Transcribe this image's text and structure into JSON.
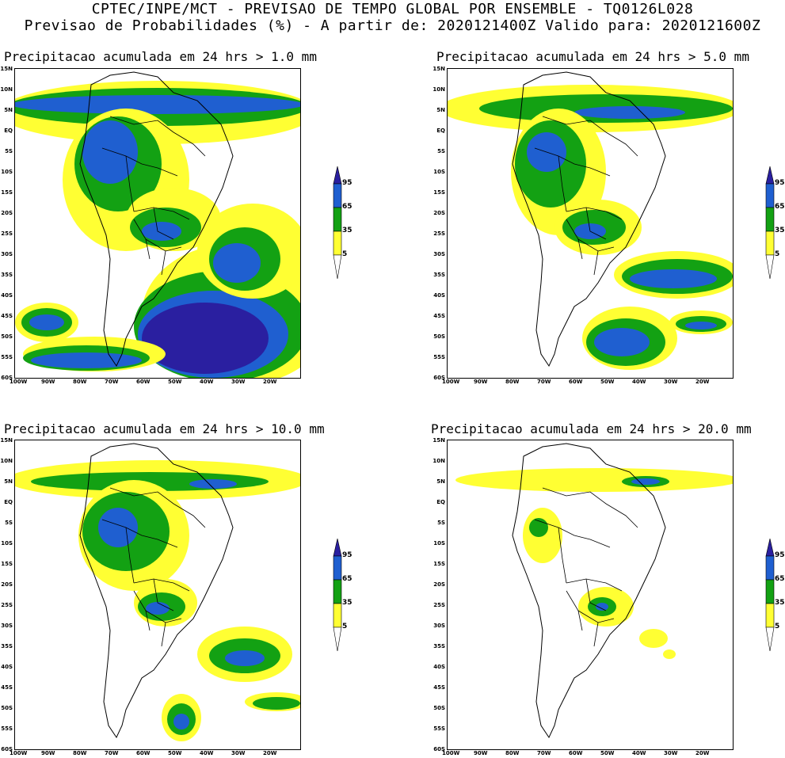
{
  "header": {
    "line1": "CPTEC/INPE/MCT - PREVISAO DE TEMPO GLOBAL POR ENSEMBLE - TQ0126L028",
    "line2": "Previsao de Probabilidades (%) -  A partir de: 2020121400Z  Valido para: 2020121600Z"
  },
  "panels": [
    {
      "title": "Precipitacao acumulada em 24 hrs > 1.0 mm"
    },
    {
      "title": "Precipitacao acumulada em 24 hrs > 5.0 mm"
    },
    {
      "title": "Precipitacao acumulada em 24 hrs > 10.0 mm"
    },
    {
      "title": "Precipitacao acumulada em 24 hrs > 20.0 mm"
    }
  ],
  "lat_labels": [
    "15N",
    "10N",
    "5N",
    "EQ",
    "5S",
    "10S",
    "15S",
    "20S",
    "25S",
    "30S",
    "35S",
    "40S",
    "45S",
    "50S",
    "55S",
    "60S"
  ],
  "lon_labels": [
    "100W",
    "90W",
    "80W",
    "70W",
    "60W",
    "50W",
    "40W",
    "30W",
    "20W"
  ],
  "colorbar": {
    "labels": [
      "95",
      "65",
      "35",
      "5"
    ],
    "colors": {
      "yellow": "#ffff33",
      "green": "#13a113",
      "blue": "#1f5fd0",
      "dark": "#2a1fa0"
    }
  }
}
